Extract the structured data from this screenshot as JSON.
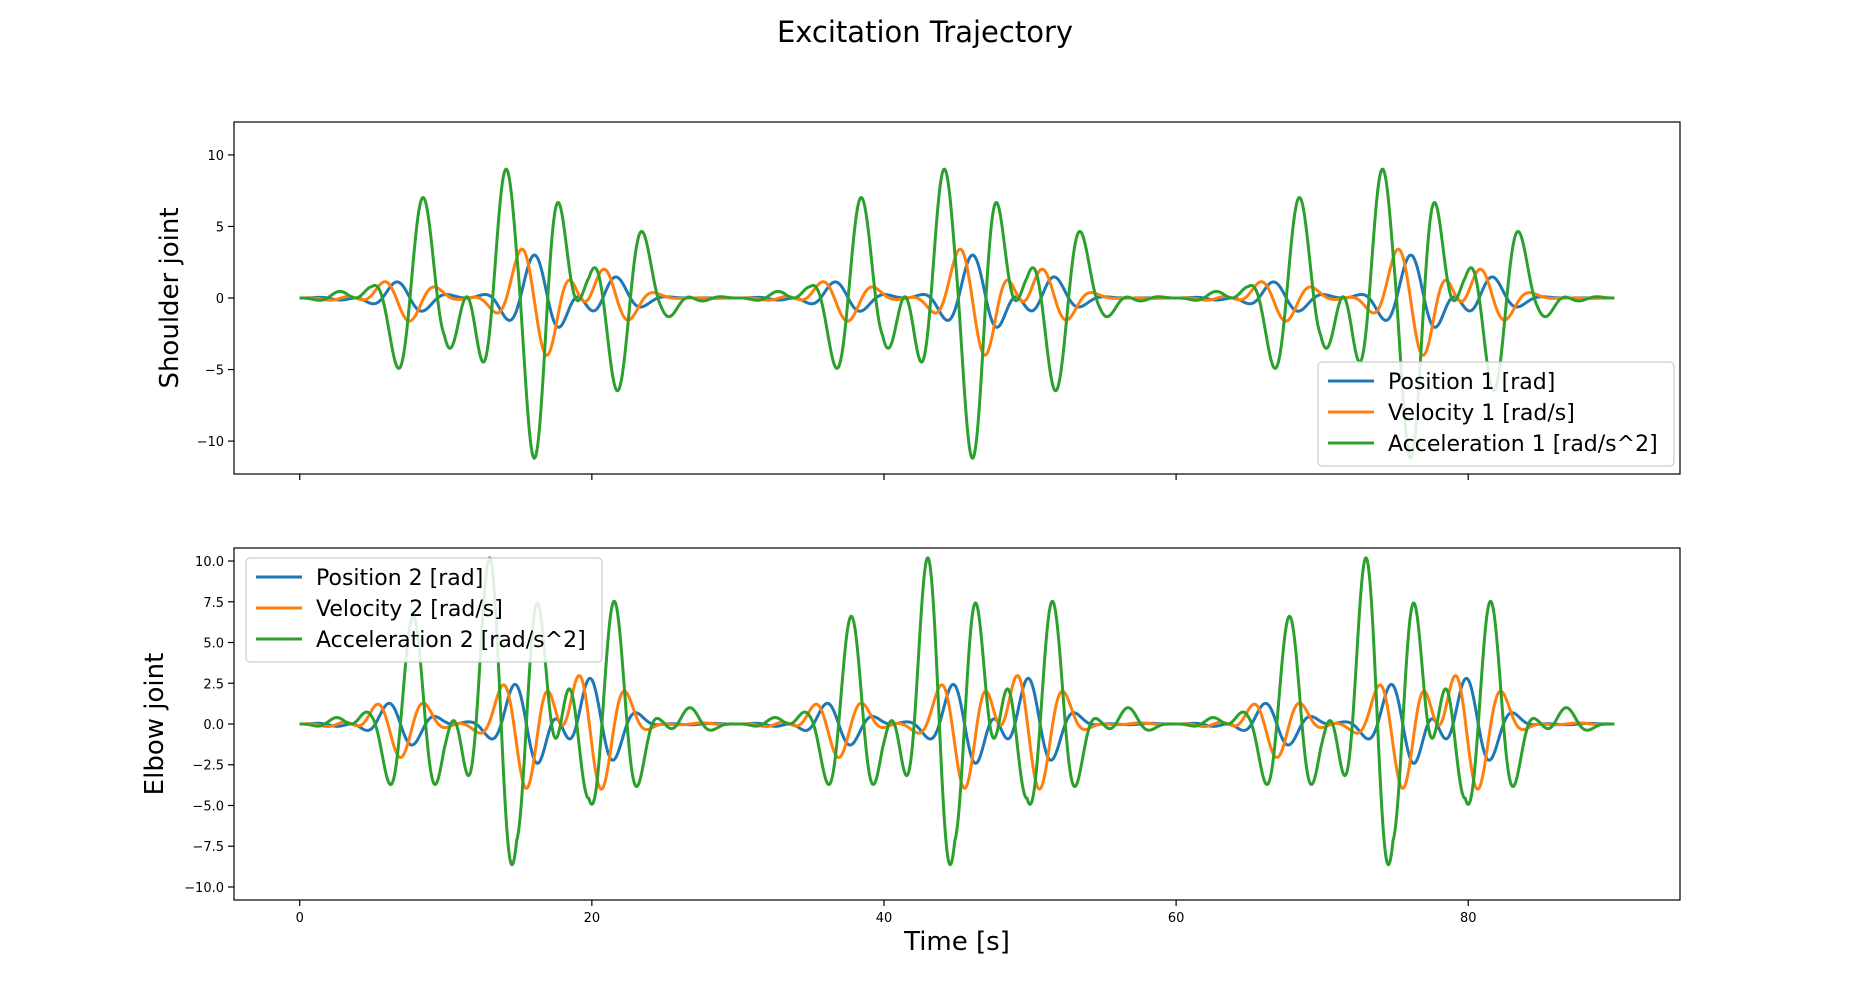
{
  "figure": {
    "title": "Excitation Trajectory"
  },
  "chart_data": [
    {
      "type": "line",
      "ylabel": "Shoulder joint",
      "xlabel": "",
      "xlim": [
        -4.5,
        94.5
      ],
      "ylim": [
        -12.3,
        12.3
      ],
      "xticks": [
        0,
        20,
        40,
        60,
        80
      ],
      "xtick_labels": [
        "",
        "",
        "",
        "",
        ""
      ],
      "yticks": [
        -10,
        -5,
        0,
        5,
        10
      ],
      "ytick_labels": [
        "−10",
        "−5",
        "0",
        "5",
        "10"
      ],
      "legend_position": "lower-right",
      "grid": false,
      "sampling": {
        "start": 0,
        "end": 90,
        "step": 0.05
      },
      "periods": [
        30,
        30,
        30
      ],
      "components": [
        {
          "freq": 0.2,
          "amp_scale": 1.0,
          "phase": 0.0
        },
        {
          "freq": 0.33,
          "amp_scale": 1.0,
          "phase": 0.0
        }
      ],
      "series": [
        {
          "name": "Position 1 [rad]",
          "color": "#1f77b4",
          "peak": 3.0,
          "kind": "position"
        },
        {
          "name": "Velocity 1 [rad/s]",
          "color": "#ff7f0e",
          "peak": 4.0,
          "kind": "velocity"
        },
        {
          "name": "Acceleration 1 [rad/s^2]",
          "color": "#2ca02c",
          "peak": 11.2,
          "kind": "acceleration"
        }
      ]
    },
    {
      "type": "line",
      "ylabel": "Elbow joint",
      "xlabel": "Time [s]",
      "xlim": [
        -4.5,
        94.5
      ],
      "ylim": [
        -10.8,
        10.8
      ],
      "xticks": [
        0,
        20,
        40,
        60,
        80
      ],
      "xtick_labels": [
        "0",
        "20",
        "40",
        "60",
        "80"
      ],
      "yticks": [
        -10,
        -7.5,
        -5,
        -2.5,
        0,
        2.5,
        5,
        7.5,
        10
      ],
      "ytick_labels": [
        "−10.0",
        "−7.5",
        "−5.0",
        "−2.5",
        "0.0",
        "2.5",
        "5.0",
        "7.5",
        "10.0"
      ],
      "legend_position": "upper-left",
      "grid": false,
      "sampling": {
        "start": 0,
        "end": 90,
        "step": 0.05
      },
      "periods": [
        30,
        30,
        30
      ],
      "components": [
        {
          "freq": 0.22,
          "amp_scale": 1.0,
          "phase": 0.0
        },
        {
          "freq": 0.36,
          "amp_scale": 1.0,
          "phase": 0.0
        }
      ],
      "series": [
        {
          "name": "Position 2 [rad]",
          "color": "#1f77b4",
          "peak": 2.8,
          "kind": "position"
        },
        {
          "name": "Velocity 2 [rad/s]",
          "color": "#ff7f0e",
          "peak": 4.0,
          "kind": "velocity"
        },
        {
          "name": "Acceleration 2 [rad/s^2]",
          "color": "#2ca02c",
          "peak": 10.2,
          "kind": "acceleration"
        }
      ]
    }
  ]
}
